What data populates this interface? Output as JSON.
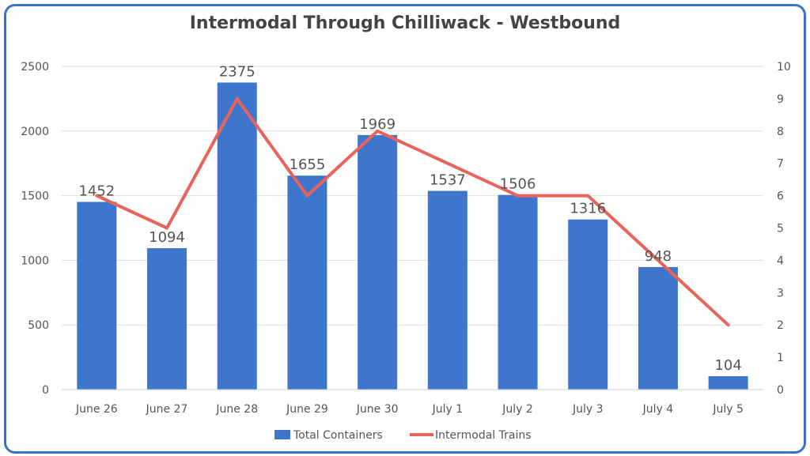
{
  "chart_data": {
    "type": "bar",
    "title": "Intermodal Through Chilliwack - Westbound",
    "categories": [
      "June 26",
      "June 27",
      "June 28",
      "June 29",
      "June 30",
      "July 1",
      "July 2",
      "July 3",
      "July 4",
      "July 5"
    ],
    "series": [
      {
        "name": "Total Containers",
        "type": "bar",
        "axis": "left",
        "color": "#3f76cd",
        "values": [
          1452,
          1094,
          2375,
          1655,
          1969,
          1537,
          1506,
          1316,
          948,
          104
        ]
      },
      {
        "name": "Intermodal Trains",
        "type": "line",
        "axis": "right",
        "color": "#e8645a",
        "values": [
          6,
          5,
          9,
          6,
          8,
          7,
          6,
          6,
          4,
          2
        ]
      }
    ],
    "y_left": {
      "min": 0,
      "max": 2500,
      "ticks": [
        "0",
        "500",
        "1000",
        "1500",
        "2000",
        "2500"
      ]
    },
    "y_right": {
      "min": 0,
      "max": 10,
      "ticks": [
        "0",
        "1",
        "2",
        "3",
        "4",
        "5",
        "6",
        "7",
        "8",
        "9",
        "10"
      ]
    },
    "grid": true,
    "legend_position": "bottom"
  }
}
